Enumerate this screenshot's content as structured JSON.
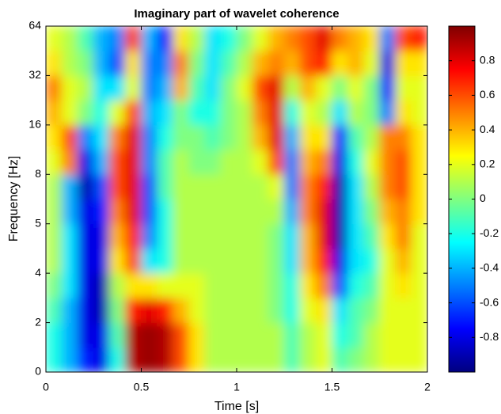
{
  "chart_data": {
    "type": "heatmap",
    "title": "Imaginary part of wavelet coherence",
    "xlabel": "Time [s]",
    "ylabel": "Frequency [Hz]",
    "xlim": [
      0,
      2
    ],
    "xticks": [
      0,
      0.5,
      1,
      1.5,
      2
    ],
    "yticks": [
      0,
      2,
      4,
      5,
      8,
      16,
      32,
      64
    ],
    "yscale": "equal-spaced",
    "colormap": "jet",
    "clim": [
      -1,
      1
    ],
    "cticks": [
      -0.8,
      -0.6,
      -0.4,
      -0.2,
      0,
      0.2,
      0.4,
      0.6,
      0.8
    ],
    "values": [
      [
        -0.2,
        -0.4,
        -0.7,
        -0.8,
        -0.2,
        0.9,
        0.95,
        0.9,
        0.6,
        0.3,
        0.1,
        0.1,
        0.1,
        0.1,
        0.1,
        -0.1,
        0.1,
        0.2,
        -0.1,
        0.0,
        0.1,
        0.2,
        0.2,
        0.2
      ],
      [
        -0.2,
        -0.4,
        -0.8,
        -0.8,
        -0.1,
        0.9,
        0.95,
        0.9,
        0.6,
        0.3,
        0.1,
        0.1,
        0.1,
        0.1,
        0.1,
        -0.1,
        0.1,
        0.2,
        -0.2,
        -0.1,
        0.1,
        0.2,
        0.2,
        0.2
      ],
      [
        -0.1,
        -0.4,
        -0.8,
        -0.9,
        0.0,
        0.7,
        0.8,
        0.7,
        0.4,
        0.2,
        0.1,
        0.1,
        0.1,
        0.1,
        0.0,
        -0.2,
        0.2,
        0.3,
        -0.3,
        -0.1,
        0.0,
        0.2,
        0.2,
        0.2
      ],
      [
        0.0,
        -0.3,
        -0.8,
        -0.9,
        0.1,
        0.3,
        0.3,
        0.2,
        0.2,
        0.2,
        0.1,
        0.1,
        0.1,
        0.1,
        0.0,
        -0.2,
        0.3,
        0.5,
        -0.6,
        -0.2,
        -0.1,
        0.2,
        0.3,
        0.2
      ],
      [
        0.1,
        -0.3,
        -0.8,
        -0.8,
        0.3,
        0.6,
        -0.3,
        -0.2,
        0.1,
        0.1,
        0.1,
        0.1,
        0.1,
        0.1,
        0.0,
        -0.3,
        0.4,
        0.7,
        -0.8,
        -0.3,
        -0.2,
        0.2,
        0.4,
        0.2
      ],
      [
        0.1,
        -0.3,
        -0.8,
        -0.8,
        0.4,
        0.7,
        -0.5,
        -0.2,
        0.1,
        0.1,
        0.1,
        0.1,
        0.1,
        0.1,
        0.0,
        -0.3,
        0.4,
        0.8,
        -0.9,
        -0.3,
        -0.1,
        0.3,
        0.5,
        0.2
      ],
      [
        0.1,
        -0.4,
        -0.8,
        -0.7,
        0.5,
        0.8,
        -0.6,
        -0.2,
        0.1,
        0.1,
        0.1,
        0.1,
        0.1,
        0.1,
        0.1,
        -0.4,
        0.5,
        0.8,
        -0.9,
        -0.3,
        0.0,
        0.4,
        0.5,
        0.3
      ],
      [
        0.1,
        -0.4,
        -0.9,
        -0.6,
        0.6,
        0.8,
        -0.6,
        -0.1,
        0.1,
        0.1,
        0.1,
        0.1,
        0.1,
        0.1,
        0.2,
        -0.5,
        0.5,
        0.7,
        -0.9,
        -0.3,
        0.1,
        0.5,
        0.6,
        0.3
      ],
      [
        0.2,
        0.5,
        -0.8,
        -0.4,
        0.6,
        0.8,
        -0.5,
        -0.1,
        0.1,
        0.0,
        0.0,
        0.1,
        0.1,
        0.2,
        0.6,
        -0.5,
        0.4,
        0.5,
        -0.8,
        -0.2,
        0.2,
        0.5,
        0.6,
        0.3
      ],
      [
        0.3,
        0.6,
        -0.5,
        -0.3,
        0.5,
        0.8,
        -0.5,
        -0.2,
        0.0,
        0.0,
        -0.1,
        0.0,
        0.1,
        0.4,
        0.8,
        -0.4,
        0.3,
        0.3,
        -0.7,
        -0.1,
        0.1,
        0.5,
        0.5,
        0.3
      ],
      [
        0.4,
        0.2,
        0.0,
        -0.2,
        0.2,
        0.6,
        -0.4,
        -0.3,
        0.0,
        -0.2,
        -0.2,
        0.0,
        0.1,
        0.5,
        0.8,
        -0.2,
        0.2,
        0.1,
        -0.3,
        0.1,
        0.0,
        -0.5,
        0.3,
        0.2
      ],
      [
        0.5,
        0.2,
        0.1,
        -0.3,
        -0.3,
        0.2,
        -0.5,
        -0.4,
        0.4,
        -0.1,
        -0.3,
        0.0,
        0.2,
        0.6,
        0.8,
        0.1,
        0.4,
        0.2,
        0.0,
        0.2,
        0.0,
        -0.7,
        0.2,
        0.2
      ],
      [
        0.3,
        0.1,
        0.0,
        -0.4,
        -0.6,
        0.3,
        -0.5,
        -0.5,
        0.5,
        0.0,
        -0.3,
        -0.1,
        0.1,
        0.4,
        0.5,
        0.4,
        0.6,
        0.7,
        0.3,
        0.4,
        0.2,
        -0.8,
        0.3,
        0.3
      ],
      [
        0.2,
        0.1,
        -0.1,
        -0.4,
        -0.5,
        0.6,
        -0.4,
        -0.7,
        0.3,
        0.1,
        -0.3,
        -0.2,
        0.0,
        0.2,
        0.4,
        0.5,
        0.6,
        0.8,
        0.5,
        0.4,
        0.3,
        -0.5,
        0.6,
        0.7
      ]
    ]
  }
}
